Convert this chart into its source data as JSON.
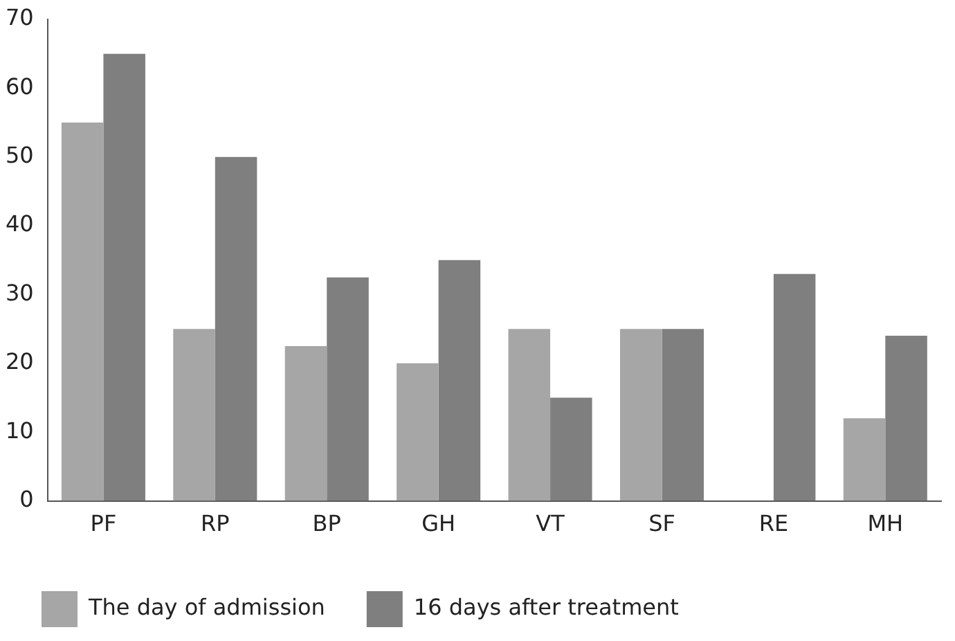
{
  "chart_data": {
    "type": "bar",
    "categories": [
      "PF",
      "RP",
      "BP",
      "GH",
      "VT",
      "SF",
      "RE",
      "MH"
    ],
    "series": [
      {
        "name": "The day of admission",
        "color": "#a6a6a6",
        "values": [
          55,
          25,
          22.5,
          20,
          25,
          25,
          0,
          12
        ]
      },
      {
        "name": "16 days after treatment",
        "color": "#7f7f7f",
        "values": [
          65,
          50,
          32.5,
          35,
          15,
          25,
          33,
          24
        ]
      }
    ],
    "ylim": [
      0,
      70
    ],
    "yticks": [
      0,
      10,
      20,
      30,
      40,
      50,
      60,
      70
    ],
    "grid": false,
    "legend": "bottom"
  }
}
